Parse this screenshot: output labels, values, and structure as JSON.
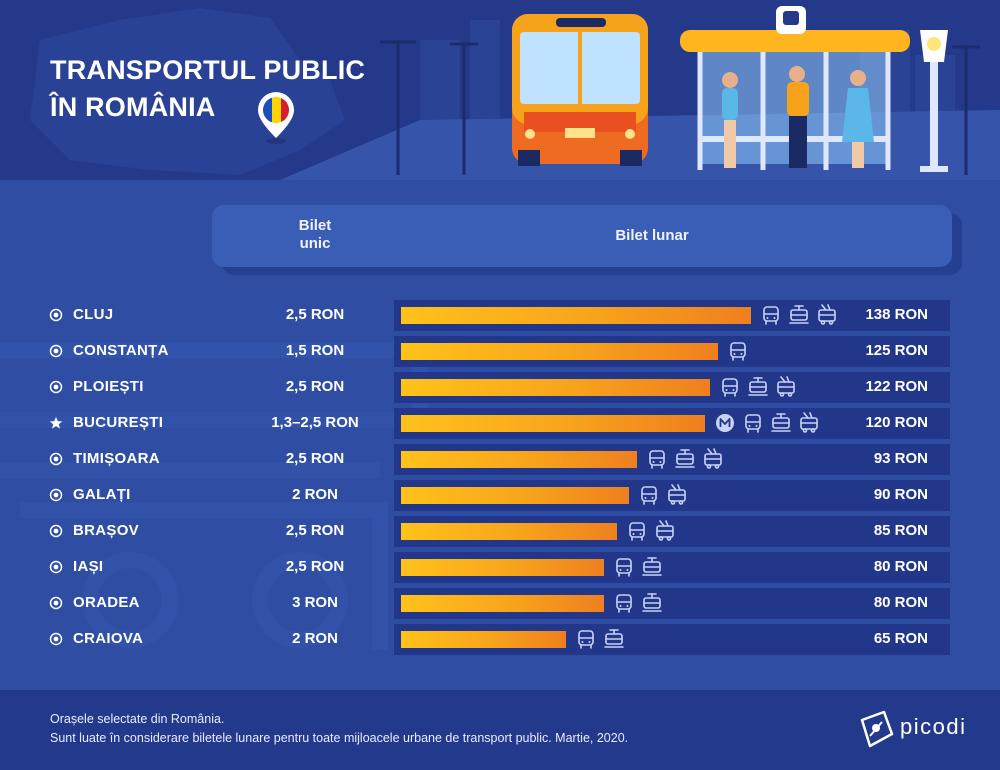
{
  "title_line1": "TRANSPORTUL PUBLIC",
  "title_line2": "ÎN ROMÂNIA",
  "colors": {
    "bar_start": "#ffc21a",
    "bar_end": "#ef7f1f",
    "background": "#2f4ea3",
    "panel": "#22378a"
  },
  "chart_data": {
    "type": "bar",
    "orientation": "horizontal",
    "columns": {
      "single": "Bilet unic",
      "monthly": "Bilet lunar"
    },
    "unit": "RON",
    "categories": [
      "CLUJ",
      "CONSTANȚA",
      "PLOIEȘTI",
      "BUCUREȘTI",
      "TIMIȘOARA",
      "GALAȚI",
      "BRAȘOV",
      "IAȘI",
      "ORADEA",
      "CRAIOVA"
    ],
    "single_ticket": [
      "2,5 RON",
      "1,5 RON",
      "2,5 RON",
      "1,3–2,5 RON",
      "2,5 RON",
      "2 RON",
      "2,5 RON",
      "2,5 RON",
      "3 RON",
      "2 RON"
    ],
    "monthly_labels": [
      "138 RON",
      "125 RON",
      "122 RON",
      "120 RON",
      "93 RON",
      "90 RON",
      "85 RON",
      "80 RON",
      "80 RON",
      "65 RON"
    ],
    "values": [
      138,
      125,
      122,
      120,
      93,
      90,
      85,
      80,
      80,
      65
    ],
    "markers": [
      "circle",
      "circle",
      "circle",
      "star",
      "circle",
      "circle",
      "circle",
      "circle",
      "circle",
      "circle"
    ],
    "modes": [
      [
        "bus-icon",
        "tram-icon",
        "trolleybus-icon"
      ],
      [
        "bus-icon"
      ],
      [
        "bus-icon",
        "tram-icon",
        "trolleybus-icon"
      ],
      [
        "metro-icon",
        "bus-icon",
        "tram-icon",
        "trolleybus-icon"
      ],
      [
        "bus-icon",
        "tram-icon",
        "trolleybus-icon"
      ],
      [
        "bus-icon",
        "trolleybus-icon"
      ],
      [
        "bus-icon",
        "trolleybus-icon"
      ],
      [
        "bus-icon",
        "tram-icon"
      ],
      [
        "bus-icon",
        "tram-icon"
      ],
      [
        "bus-icon",
        "tram-icon"
      ]
    ]
  },
  "footer": {
    "line1": "Orașele selectate din România.",
    "line2": "Sunt luate în considerare biletele lunare pentru toate mijloacele urbane de transport public. Martie, 2020."
  },
  "brand": "picodi"
}
